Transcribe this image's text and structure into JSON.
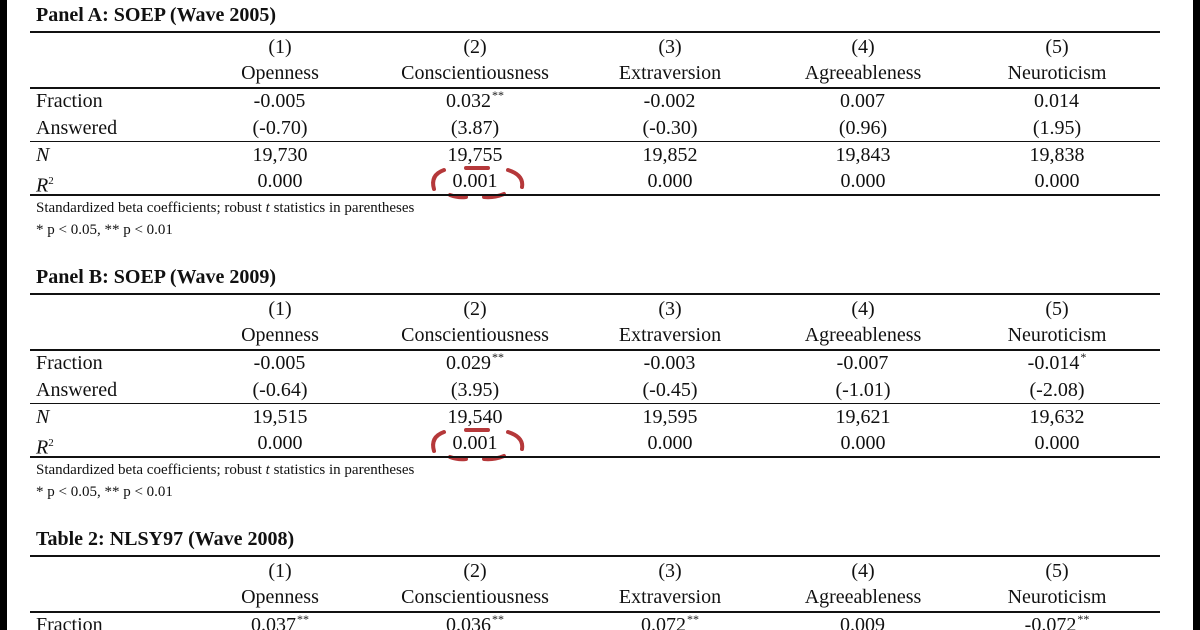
{
  "columns": [
    {
      "num": "(1)",
      "name": "Openness"
    },
    {
      "num": "(2)",
      "name": "Conscientiousness"
    },
    {
      "num": "(3)",
      "name": "Extraversion"
    },
    {
      "num": "(4)",
      "name": "Agreeableness"
    },
    {
      "num": "(5)",
      "name": "Neuroticism"
    }
  ],
  "note": {
    "line1_pre": "Standardized beta coefficients; robust ",
    "line1_t": "t",
    "line1_post": " statistics in parentheses",
    "line2": "* p < 0.05, ** p < 0.01"
  },
  "panels": [
    {
      "title": "Panel A: SOEP (Wave 2005)",
      "rows": {
        "fraction_label": "Fraction",
        "answered_label": "Answered",
        "n_label": "N",
        "r2_label": "R2",
        "fraction": [
          {
            "v": "-0.005",
            "s": ""
          },
          {
            "v": "0.032",
            "s": "**"
          },
          {
            "v": "-0.002",
            "s": ""
          },
          {
            "v": "0.007",
            "s": ""
          },
          {
            "v": "0.014",
            "s": ""
          }
        ],
        "answered": [
          "(-0.70)",
          "(3.87)",
          "(-0.30)",
          "(0.96)",
          "(1.95)"
        ],
        "n": [
          "19,730",
          "19,755",
          "19,852",
          "19,843",
          "19,838"
        ],
        "r2": [
          "0.000",
          "0.001",
          "0.000",
          "0.000",
          "0.000"
        ]
      }
    },
    {
      "title": "Panel B: SOEP (Wave 2009)",
      "rows": {
        "fraction_label": "Fraction",
        "answered_label": "Answered",
        "n_label": "N",
        "r2_label": "R2",
        "fraction": [
          {
            "v": "-0.005",
            "s": ""
          },
          {
            "v": "0.029",
            "s": "**"
          },
          {
            "v": "-0.003",
            "s": ""
          },
          {
            "v": "-0.007",
            "s": ""
          },
          {
            "v": "-0.014",
            "s": "*"
          }
        ],
        "answered": [
          "(-0.64)",
          "(3.95)",
          "(-0.45)",
          "(-1.01)",
          "(-2.08)"
        ],
        "n": [
          "19,515",
          "19,540",
          "19,595",
          "19,621",
          "19,632"
        ],
        "r2": [
          "0.000",
          "0.001",
          "0.000",
          "0.000",
          "0.000"
        ]
      }
    },
    {
      "title": "Table 2: NLSY97 (Wave 2008)",
      "rows": {
        "fraction_label": "Fraction",
        "fraction": [
          {
            "v": "0.037",
            "s": "**"
          },
          {
            "v": "0.036",
            "s": "**"
          },
          {
            "v": "0.072",
            "s": "**"
          },
          {
            "v": "0.009",
            "s": ""
          },
          {
            "v": "-0.072",
            "s": "**"
          }
        ]
      }
    }
  ],
  "annotation_color": "#b5383a"
}
